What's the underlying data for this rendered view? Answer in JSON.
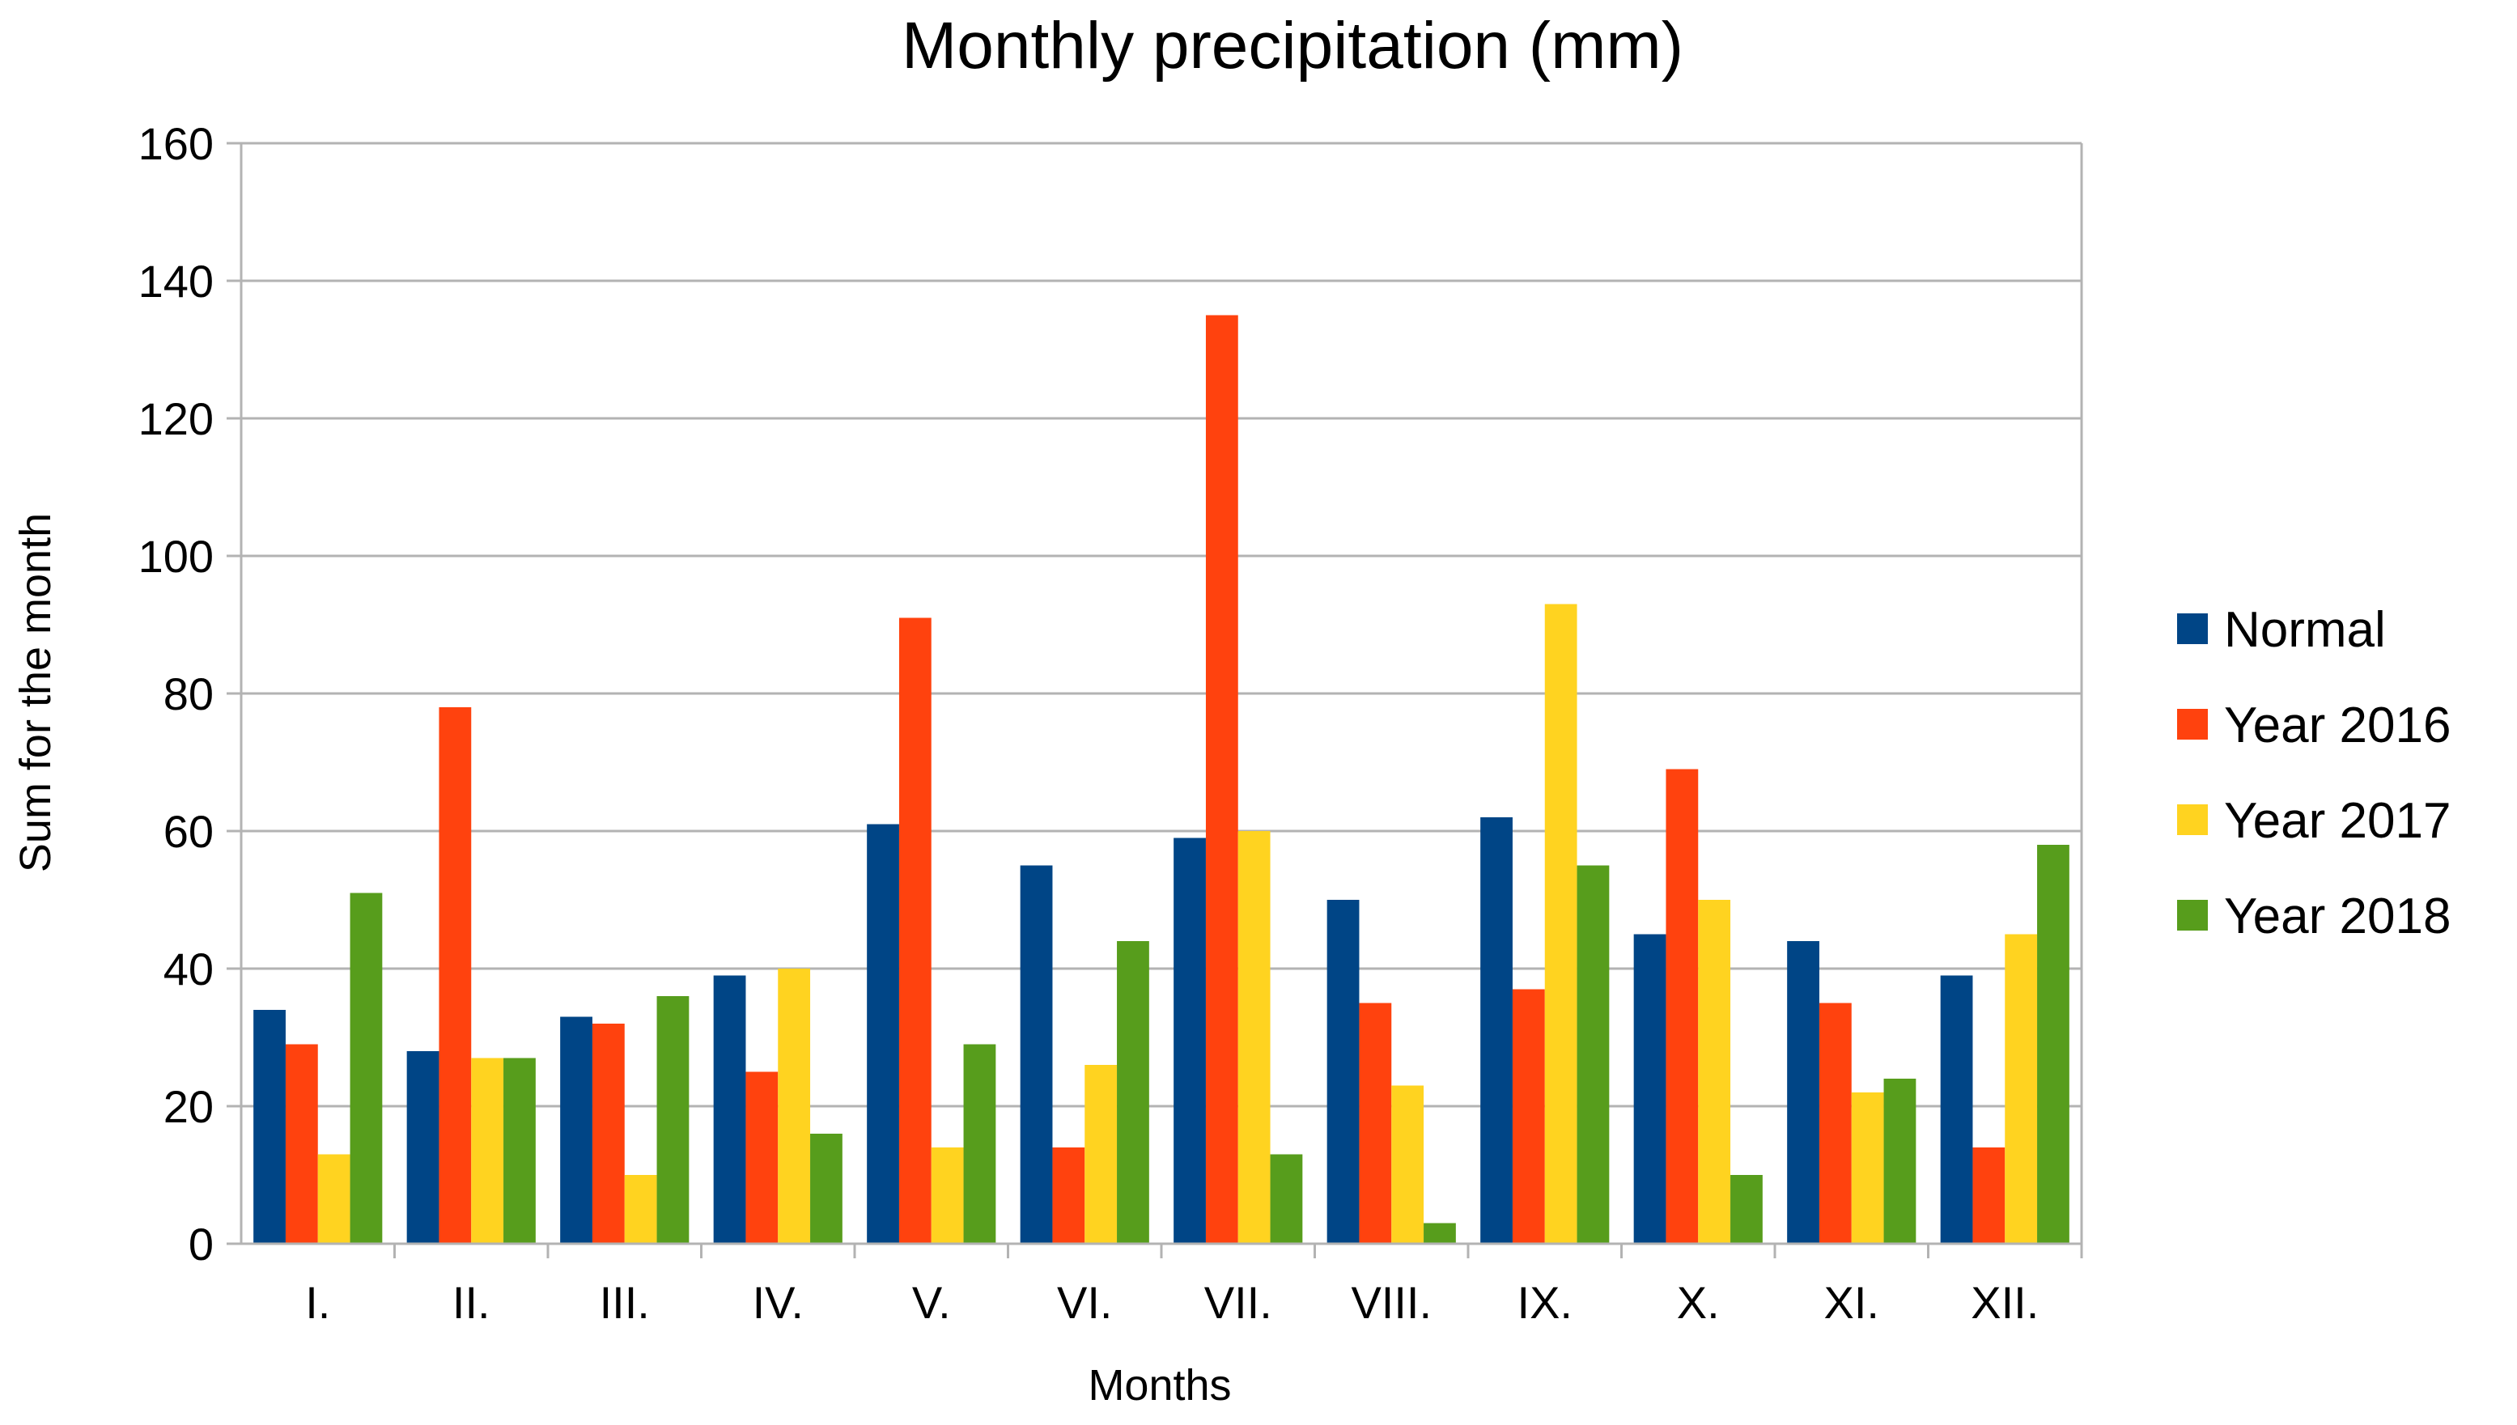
{
  "chart_data": {
    "type": "bar",
    "title": "Monthly precipitation (mm)",
    "xlabel": "Months",
    "ylabel": "Sum for the month",
    "ylim": [
      0,
      160
    ],
    "yticks": [
      0,
      20,
      40,
      60,
      80,
      100,
      120,
      140,
      160
    ],
    "grid": true,
    "legend_position": "right",
    "categories": [
      "I.",
      "II.",
      "III.",
      "IV.",
      "V.",
      "VI.",
      "VII.",
      "VIII.",
      "IX.",
      "X.",
      "XI.",
      "XII."
    ],
    "series": [
      {
        "name": "Normal",
        "color": "#004586",
        "values": [
          34,
          28,
          33,
          39,
          61,
          55,
          59,
          50,
          62,
          45,
          44,
          39
        ]
      },
      {
        "name": "Year 2016",
        "color": "#ff420e",
        "values": [
          29,
          78,
          32,
          25,
          91,
          14,
          135,
          35,
          37,
          69,
          35,
          14
        ]
      },
      {
        "name": "Year 2017",
        "color": "#ffd320",
        "values": [
          13,
          27,
          10,
          40,
          14,
          26,
          60,
          23,
          93,
          50,
          22,
          45
        ]
      },
      {
        "name": "Year 2018",
        "color": "#579d1c",
        "values": [
          51,
          27,
          36,
          16,
          29,
          44,
          13,
          3,
          55,
          10,
          24,
          58
        ]
      }
    ]
  }
}
